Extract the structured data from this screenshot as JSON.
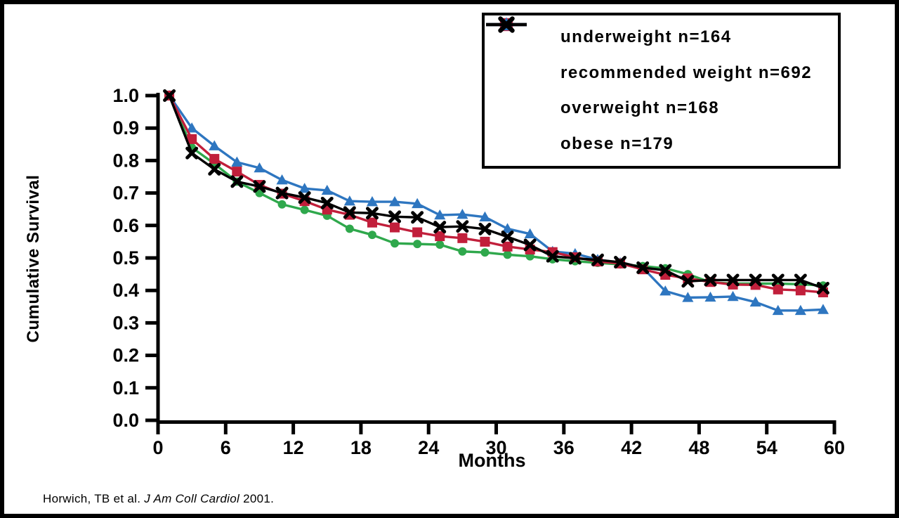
{
  "citation": {
    "prefix": "Horwich, TB et al. ",
    "journal": "J Am Coll Cardiol",
    "suffix": " 2001."
  },
  "chart_data": {
    "type": "line",
    "title": "",
    "xlabel": "Months",
    "ylabel": "Cumulative Survival",
    "xlim": [
      0,
      60
    ],
    "ylim": [
      0.0,
      1.0
    ],
    "x_ticks": [
      0,
      6,
      12,
      18,
      24,
      30,
      36,
      42,
      48,
      54,
      60
    ],
    "y_ticks": [
      0.0,
      0.1,
      0.2,
      0.3,
      0.4,
      0.5,
      0.6,
      0.7,
      0.8,
      0.9,
      1.0
    ],
    "grid": false,
    "legend_position": "top-right",
    "x": [
      1,
      3,
      5,
      7,
      9,
      11,
      13,
      15,
      17,
      19,
      21,
      23,
      25,
      27,
      29,
      31,
      33,
      35,
      37,
      39,
      41,
      43,
      45,
      47,
      49,
      51,
      53,
      55,
      57,
      59
    ],
    "series": [
      {
        "name": "underweight n=164",
        "marker": "circle",
        "color": "#2FA84C",
        "values": [
          1.0,
          0.84,
          0.79,
          0.735,
          0.7,
          0.665,
          0.648,
          0.63,
          0.59,
          0.571,
          0.545,
          0.543,
          0.541,
          0.52,
          0.517,
          0.51,
          0.505,
          0.496,
          0.49,
          0.485,
          0.48,
          0.475,
          0.468,
          0.45,
          0.425,
          0.421,
          0.421,
          0.421,
          0.419,
          0.415
        ]
      },
      {
        "name": "recommended weight n=692",
        "marker": "square",
        "color": "#C11F3B",
        "values": [
          1.0,
          0.866,
          0.805,
          0.766,
          0.725,
          0.698,
          0.675,
          0.649,
          0.633,
          0.609,
          0.594,
          0.579,
          0.567,
          0.561,
          0.55,
          0.535,
          0.526,
          0.518,
          0.502,
          0.489,
          0.483,
          0.465,
          0.448,
          0.437,
          0.426,
          0.418,
          0.417,
          0.403,
          0.4,
          0.394
        ]
      },
      {
        "name": "overweight n=168",
        "marker": "triangle",
        "color": "#2E76C0",
        "values": [
          1.0,
          0.9,
          0.845,
          0.795,
          0.777,
          0.74,
          0.714,
          0.708,
          0.675,
          0.673,
          0.673,
          0.667,
          0.632,
          0.634,
          0.626,
          0.59,
          0.574,
          0.52,
          0.513,
          0.495,
          0.485,
          0.47,
          0.398,
          0.378,
          0.379,
          0.381,
          0.364,
          0.338,
          0.338,
          0.341
        ]
      },
      {
        "name": "obese n=179",
        "marker": "x-cross",
        "color": "#000000",
        "values": [
          1.0,
          0.823,
          0.773,
          0.735,
          0.72,
          0.7,
          0.686,
          0.669,
          0.64,
          0.638,
          0.627,
          0.625,
          0.595,
          0.597,
          0.589,
          0.565,
          0.54,
          0.505,
          0.499,
          0.494,
          0.487,
          0.47,
          0.462,
          0.428,
          0.432,
          0.432,
          0.432,
          0.432,
          0.432,
          0.407
        ]
      }
    ]
  }
}
